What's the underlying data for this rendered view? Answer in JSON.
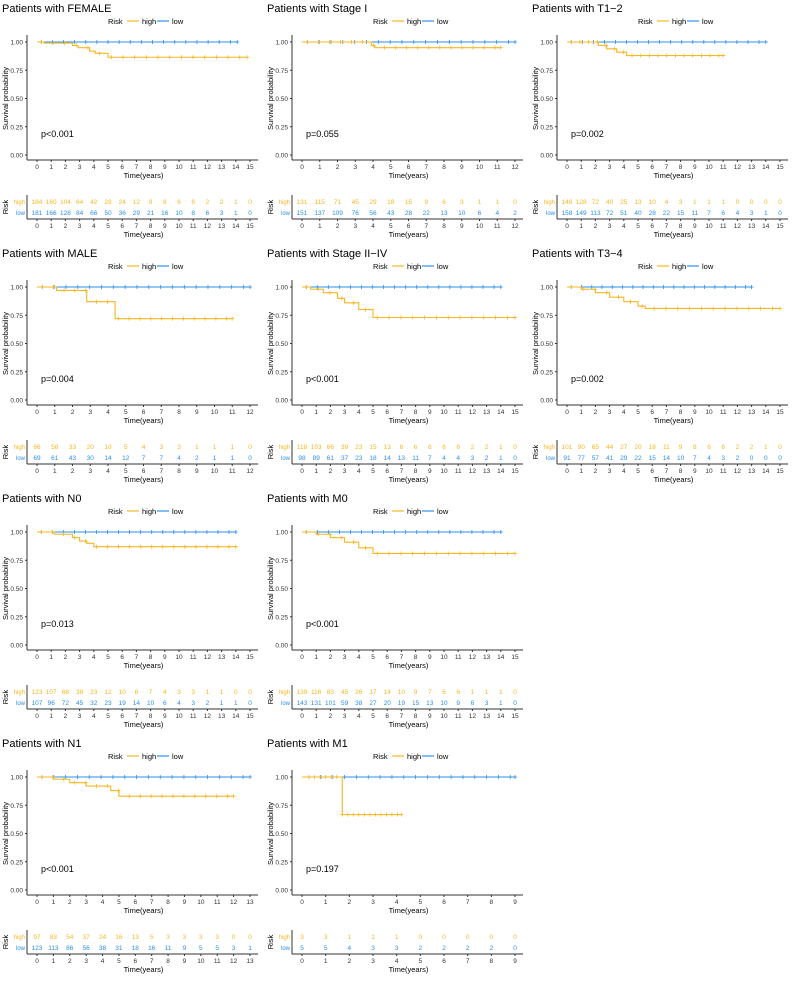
{
  "colors": {
    "high": "#F5B722",
    "low": "#2B8FEF",
    "axis": "#333333"
  },
  "legend": {
    "title": "Risk",
    "high": "high",
    "low": "low"
  },
  "labels": {
    "ylabel": "Survival probability",
    "xlabel": "Time(years)",
    "risk": "Risk",
    "high": "high",
    "low": "low"
  },
  "yticks": [
    "0.00",
    "0.25",
    "0.50",
    "0.75",
    "1.00"
  ],
  "chart_data": [
    {
      "type": "line",
      "title": "Patients with FEMALE",
      "pvalue": "p<0.001",
      "xmax": 15,
      "high_curve": [
        [
          0,
          1
        ],
        [
          0.5,
          0.99
        ],
        [
          2.5,
          0.97
        ],
        [
          2.9,
          0.95
        ],
        [
          3.7,
          0.92
        ],
        [
          4.1,
          0.9
        ],
        [
          5,
          0.865
        ],
        [
          14.8,
          0.865
        ]
      ],
      "low_curve": [
        [
          0,
          1
        ],
        [
          14.1,
          1
        ]
      ],
      "risk_high": [
        184,
        160,
        104,
        64,
        42,
        28,
        24,
        12,
        9,
        8,
        6,
        6,
        2,
        2,
        1,
        0
      ],
      "risk_low": [
        181,
        166,
        128,
        84,
        66,
        50,
        36,
        29,
        21,
        16,
        10,
        8,
        6,
        3,
        1,
        0
      ]
    },
    {
      "type": "line",
      "title": "Patients with Stage I",
      "pvalue": "p=0.055",
      "xmax": 12,
      "high_curve": [
        [
          0,
          1
        ],
        [
          3.9,
          0.97
        ],
        [
          4.1,
          0.95
        ],
        [
          11.2,
          0.95
        ]
      ],
      "low_curve": [
        [
          0,
          1
        ],
        [
          12,
          1
        ]
      ],
      "risk_high": [
        131,
        115,
        71,
        45,
        29,
        18,
        15,
        9,
        6,
        3,
        1,
        1,
        0
      ],
      "risk_low": [
        151,
        137,
        109,
        76,
        56,
        43,
        28,
        22,
        13,
        10,
        6,
        4,
        2
      ]
    },
    {
      "type": "line",
      "title": "Patients with T1−2",
      "pvalue": "p=0.002",
      "xmax": 15,
      "high_curve": [
        [
          0,
          1
        ],
        [
          2.2,
          0.97
        ],
        [
          2.8,
          0.94
        ],
        [
          3.5,
          0.91
        ],
        [
          4.2,
          0.88
        ],
        [
          11,
          0.88
        ]
      ],
      "low_curve": [
        [
          0,
          1
        ],
        [
          14,
          1
        ]
      ],
      "risk_high": [
        148,
        128,
        72,
        40,
        25,
        13,
        10,
        4,
        3,
        1,
        1,
        1,
        0,
        0,
        0,
        0
      ],
      "risk_low": [
        158,
        149,
        113,
        72,
        51,
        40,
        28,
        22,
        15,
        11,
        7,
        6,
        4,
        3,
        1,
        0
      ]
    },
    {
      "type": "line",
      "title": "Patients with MALE",
      "pvalue": "p=0.004",
      "xmax": 12,
      "high_curve": [
        [
          0,
          1
        ],
        [
          1.1,
          0.97
        ],
        [
          2.8,
          0.87
        ],
        [
          4.4,
          0.72
        ],
        [
          11,
          0.72
        ]
      ],
      "low_curve": [
        [
          0,
          1
        ],
        [
          12,
          1
        ]
      ],
      "risk_high": [
        66,
        58,
        33,
        20,
        10,
        5,
        4,
        3,
        3,
        1,
        1,
        1,
        0
      ],
      "risk_low": [
        69,
        61,
        43,
        30,
        14,
        12,
        7,
        7,
        4,
        2,
        1,
        1,
        0
      ]
    },
    {
      "type": "line",
      "title": "Patients with Stage II−IV",
      "pvalue": "p<0.001",
      "xmax": 15,
      "high_curve": [
        [
          0,
          1
        ],
        [
          0.6,
          0.98
        ],
        [
          1.5,
          0.95
        ],
        [
          2.5,
          0.9
        ],
        [
          3,
          0.86
        ],
        [
          4,
          0.8
        ],
        [
          5,
          0.73
        ],
        [
          15,
          0.73
        ]
      ],
      "low_curve": [
        [
          0,
          1
        ],
        [
          14,
          1
        ]
      ],
      "risk_high": [
        118,
        103,
        66,
        39,
        23,
        15,
        13,
        6,
        6,
        6,
        6,
        6,
        2,
        2,
        1,
        0
      ],
      "risk_low": [
        98,
        89,
        61,
        37,
        23,
        18,
        14,
        13,
        11,
        7,
        4,
        4,
        3,
        2,
        1,
        0
      ]
    },
    {
      "type": "line",
      "title": "Patients with T3−4",
      "pvalue": "p=0.002",
      "xmax": 15,
      "high_curve": [
        [
          0,
          1
        ],
        [
          1,
          0.98
        ],
        [
          2,
          0.95
        ],
        [
          3,
          0.91
        ],
        [
          4,
          0.87
        ],
        [
          5,
          0.83
        ],
        [
          5.5,
          0.81
        ],
        [
          15,
          0.81
        ]
      ],
      "low_curve": [
        [
          0,
          1
        ],
        [
          13,
          1
        ]
      ],
      "risk_high": [
        101,
        90,
        65,
        44,
        27,
        20,
        18,
        11,
        9,
        8,
        6,
        6,
        2,
        2,
        1,
        0
      ],
      "risk_low": [
        91,
        77,
        57,
        41,
        29,
        22,
        15,
        14,
        10,
        7,
        4,
        3,
        2,
        0,
        0,
        0
      ]
    },
    {
      "type": "line",
      "title": "Patients with N0",
      "pvalue": "p=0.013",
      "xmax": 15,
      "high_curve": [
        [
          0,
          1
        ],
        [
          1.2,
          0.98
        ],
        [
          2.5,
          0.95
        ],
        [
          3,
          0.92
        ],
        [
          3.5,
          0.9
        ],
        [
          4,
          0.87
        ],
        [
          14,
          0.87
        ]
      ],
      "low_curve": [
        [
          0,
          1
        ],
        [
          14,
          1
        ]
      ],
      "risk_high": [
        123,
        107,
        68,
        38,
        23,
        12,
        10,
        8,
        7,
        4,
        3,
        3,
        1,
        1,
        0,
        0
      ],
      "risk_low": [
        107,
        96,
        72,
        45,
        32,
        23,
        19,
        14,
        10,
        6,
        4,
        3,
        2,
        1,
        1,
        0
      ]
    },
    {
      "type": "line",
      "title": "Patients with M0",
      "pvalue": "p<0.001",
      "xmax": 15,
      "high_curve": [
        [
          0,
          1
        ],
        [
          1,
          0.98
        ],
        [
          2,
          0.95
        ],
        [
          3,
          0.91
        ],
        [
          4,
          0.86
        ],
        [
          5,
          0.81
        ],
        [
          15,
          0.81
        ]
      ],
      "low_curve": [
        [
          0,
          1
        ],
        [
          14,
          1
        ]
      ],
      "risk_high": [
        139,
        116,
        83,
        45,
        26,
        17,
        14,
        10,
        9,
        7,
        6,
        6,
        1,
        1,
        1,
        0
      ],
      "risk_low": [
        143,
        131,
        101,
        59,
        38,
        27,
        20,
        19,
        15,
        13,
        10,
        9,
        6,
        3,
        1,
        0
      ]
    },
    {
      "type": "line",
      "title": "Patients with N1",
      "pvalue": "p<0.001",
      "xmax": 13,
      "high_curve": [
        [
          0,
          1
        ],
        [
          1,
          0.98
        ],
        [
          2,
          0.95
        ],
        [
          3,
          0.92
        ],
        [
          4.5,
          0.88
        ],
        [
          5,
          0.83
        ],
        [
          12,
          0.83
        ]
      ],
      "low_curve": [
        [
          0,
          1
        ],
        [
          13,
          1
        ]
      ],
      "risk_high": [
        97,
        83,
        54,
        37,
        24,
        16,
        13,
        5,
        3,
        3,
        3,
        3,
        0,
        0
      ],
      "risk_low": [
        123,
        113,
        86,
        56,
        38,
        31,
        18,
        16,
        11,
        9,
        5,
        5,
        3,
        1
      ]
    },
    {
      "type": "line",
      "title": "Patients with M1",
      "pvalue": "p=0.197",
      "xmax": 9,
      "high_curve": [
        [
          0,
          1
        ],
        [
          1.7,
          0.667
        ],
        [
          4.2,
          0.667
        ]
      ],
      "low_curve": [
        [
          0,
          1
        ],
        [
          9,
          1
        ]
      ],
      "risk_high": [
        3,
        3,
        1,
        1,
        1,
        0,
        0,
        0,
        0,
        0
      ],
      "risk_low": [
        5,
        5,
        4,
        3,
        3,
        2,
        2,
        2,
        2,
        0
      ]
    }
  ]
}
